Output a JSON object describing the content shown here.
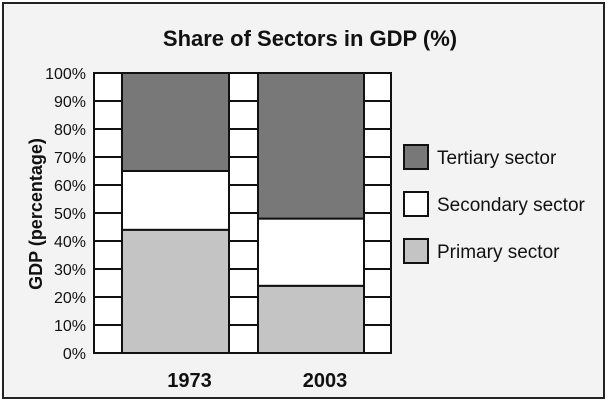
{
  "chart_data": {
    "type": "bar",
    "stacked": true,
    "title": "Share of Sectors in GDP (%)",
    "xlabel": "",
    "ylabel": "GDP (percentage)",
    "ylim": [
      0,
      100
    ],
    "yticks": [
      "0%",
      "10%",
      "20%",
      "30%",
      "40%",
      "50%",
      "60%",
      "70%",
      "80%",
      "90%",
      "100%"
    ],
    "grid": false,
    "legend_position": "right",
    "categories": [
      "1973",
      "2003"
    ],
    "series": [
      {
        "name": "Primary sector",
        "values": [
          44,
          24
        ],
        "color": "#c4c4c4"
      },
      {
        "name": "Secondary sector",
        "values": [
          21,
          24
        ],
        "color": "#ffffff"
      },
      {
        "name": "Tertiary sector",
        "values": [
          35,
          52
        ],
        "color": "#787878"
      }
    ],
    "legend_order": [
      "Tertiary sector",
      "Secondary sector",
      "Primary sector"
    ]
  }
}
